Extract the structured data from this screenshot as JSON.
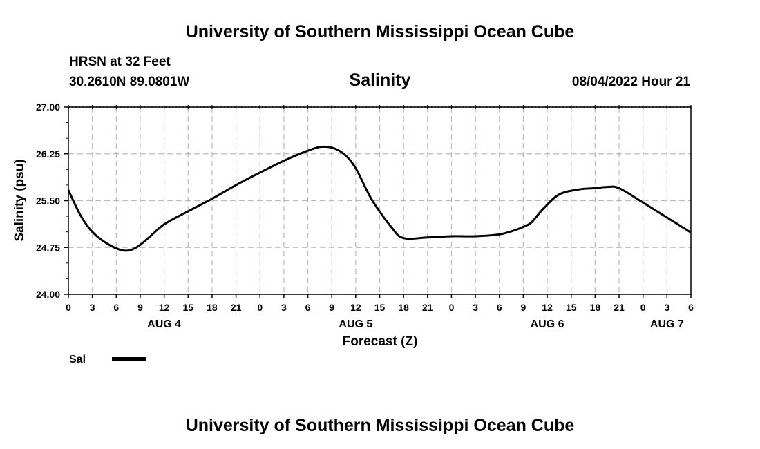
{
  "header": {
    "top_title": "University of Southern Mississippi Ocean Cube",
    "station": "HRSN at 32 Feet",
    "coords": "30.2610N  89.0801W",
    "datetime": "08/04/2022 Hour 21",
    "bottom_title": "University of Southern Mississippi Ocean Cube"
  },
  "chart_data": {
    "type": "line",
    "title": "Salinity",
    "xlabel": "Forecast (Z)",
    "ylabel": "Salinity (psu)",
    "ylim": [
      24.0,
      27.0
    ],
    "xlim": [
      0,
      78
    ],
    "yticks": [
      "24.00",
      "24.75",
      "25.50",
      "26.25",
      "27.00"
    ],
    "ytick_values": [
      24.0,
      24.75,
      25.5,
      26.25,
      27.0
    ],
    "xtick_labels": [
      "0",
      "3",
      "6",
      "9",
      "12",
      "15",
      "18",
      "21",
      "0",
      "3",
      "6",
      "9",
      "12",
      "15",
      "18",
      "21",
      "0",
      "3",
      "6",
      "9",
      "12",
      "15",
      "18",
      "21",
      "0",
      "3",
      "6"
    ],
    "days": [
      {
        "label": "AUG 4",
        "hour": 12
      },
      {
        "label": "AUG 5",
        "hour": 36
      },
      {
        "label": "AUG 6",
        "hour": 60
      },
      {
        "label": "AUG 7",
        "hour": 75
      }
    ],
    "grid": true,
    "legend_position": "bottom-left",
    "series": [
      {
        "name": "Sal",
        "color": "#000000",
        "x": [
          0,
          1.5,
          3,
          5,
          7,
          8.5,
          10,
          12,
          15,
          18,
          21,
          24,
          27,
          30,
          31.5,
          33,
          34.5,
          36,
          38,
          40.5,
          42,
          45,
          48,
          51,
          54,
          56,
          57,
          58,
          59.5,
          61.5,
          64,
          66,
          67.5,
          69,
          72,
          75,
          78
        ],
        "y": [
          25.67,
          25.27,
          25.0,
          24.8,
          24.7,
          24.75,
          24.9,
          25.12,
          25.33,
          25.53,
          25.75,
          25.95,
          26.14,
          26.3,
          26.36,
          26.35,
          26.25,
          26.02,
          25.52,
          25.07,
          24.9,
          24.91,
          24.93,
          24.93,
          24.96,
          25.03,
          25.08,
          25.15,
          25.37,
          25.6,
          25.68,
          25.7,
          25.72,
          25.7,
          25.47,
          25.23,
          24.99
        ]
      }
    ]
  }
}
